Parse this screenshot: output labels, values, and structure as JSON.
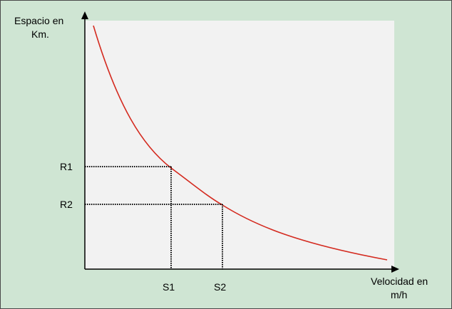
{
  "diagram": {
    "y_axis_label_line1": "Espacio en",
    "y_axis_label_line2": "Km.",
    "x_axis_label_line1": "Velocidad en",
    "x_axis_label_line2": "m/h",
    "y_marks": [
      "R1",
      "R2"
    ],
    "x_marks": [
      "S1",
      "S2"
    ],
    "colors": {
      "background": "#cfe5d3",
      "plot_area": "#f2f2f2",
      "curve": "#d42a1f",
      "axes": "#000000",
      "guides": "#000000"
    }
  }
}
